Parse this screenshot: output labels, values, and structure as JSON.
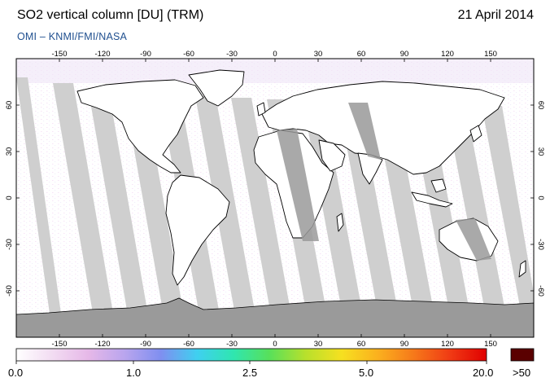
{
  "header": {
    "title": "SO2 vertical column [DU] (TRM)",
    "date": "21 April 2014",
    "subtitle": "OMI  –  KNMI/FMI/NASA"
  },
  "map": {
    "lon_ticks": [
      "-150",
      "-120",
      "-90",
      "-60",
      "-30",
      "0",
      "30",
      "60",
      "90",
      "120",
      "150"
    ],
    "lat_ticks": [
      "60",
      "30",
      "0",
      "-30",
      "-60"
    ],
    "colors": {
      "ocean": "#ffffff",
      "swath_gap": "#cfcfcf",
      "land_gap": "#9a9a9a",
      "coast": "#000000"
    }
  },
  "colorbar": {
    "labels": [
      "0.0",
      "1.0",
      "2.5",
      "5.0",
      "20.0"
    ],
    "overflow_label": ">50",
    "overflow_color": "#5a0000",
    "stops": [
      "#ffffff",
      "#f2dcf2",
      "#e6b8e8",
      "#b9a5ee",
      "#7f8ff0",
      "#3fd0f0",
      "#2fe6b0",
      "#58e05a",
      "#b8e02c",
      "#f6e020",
      "#fbb01e",
      "#f6781a",
      "#f03a14",
      "#e00000"
    ]
  }
}
